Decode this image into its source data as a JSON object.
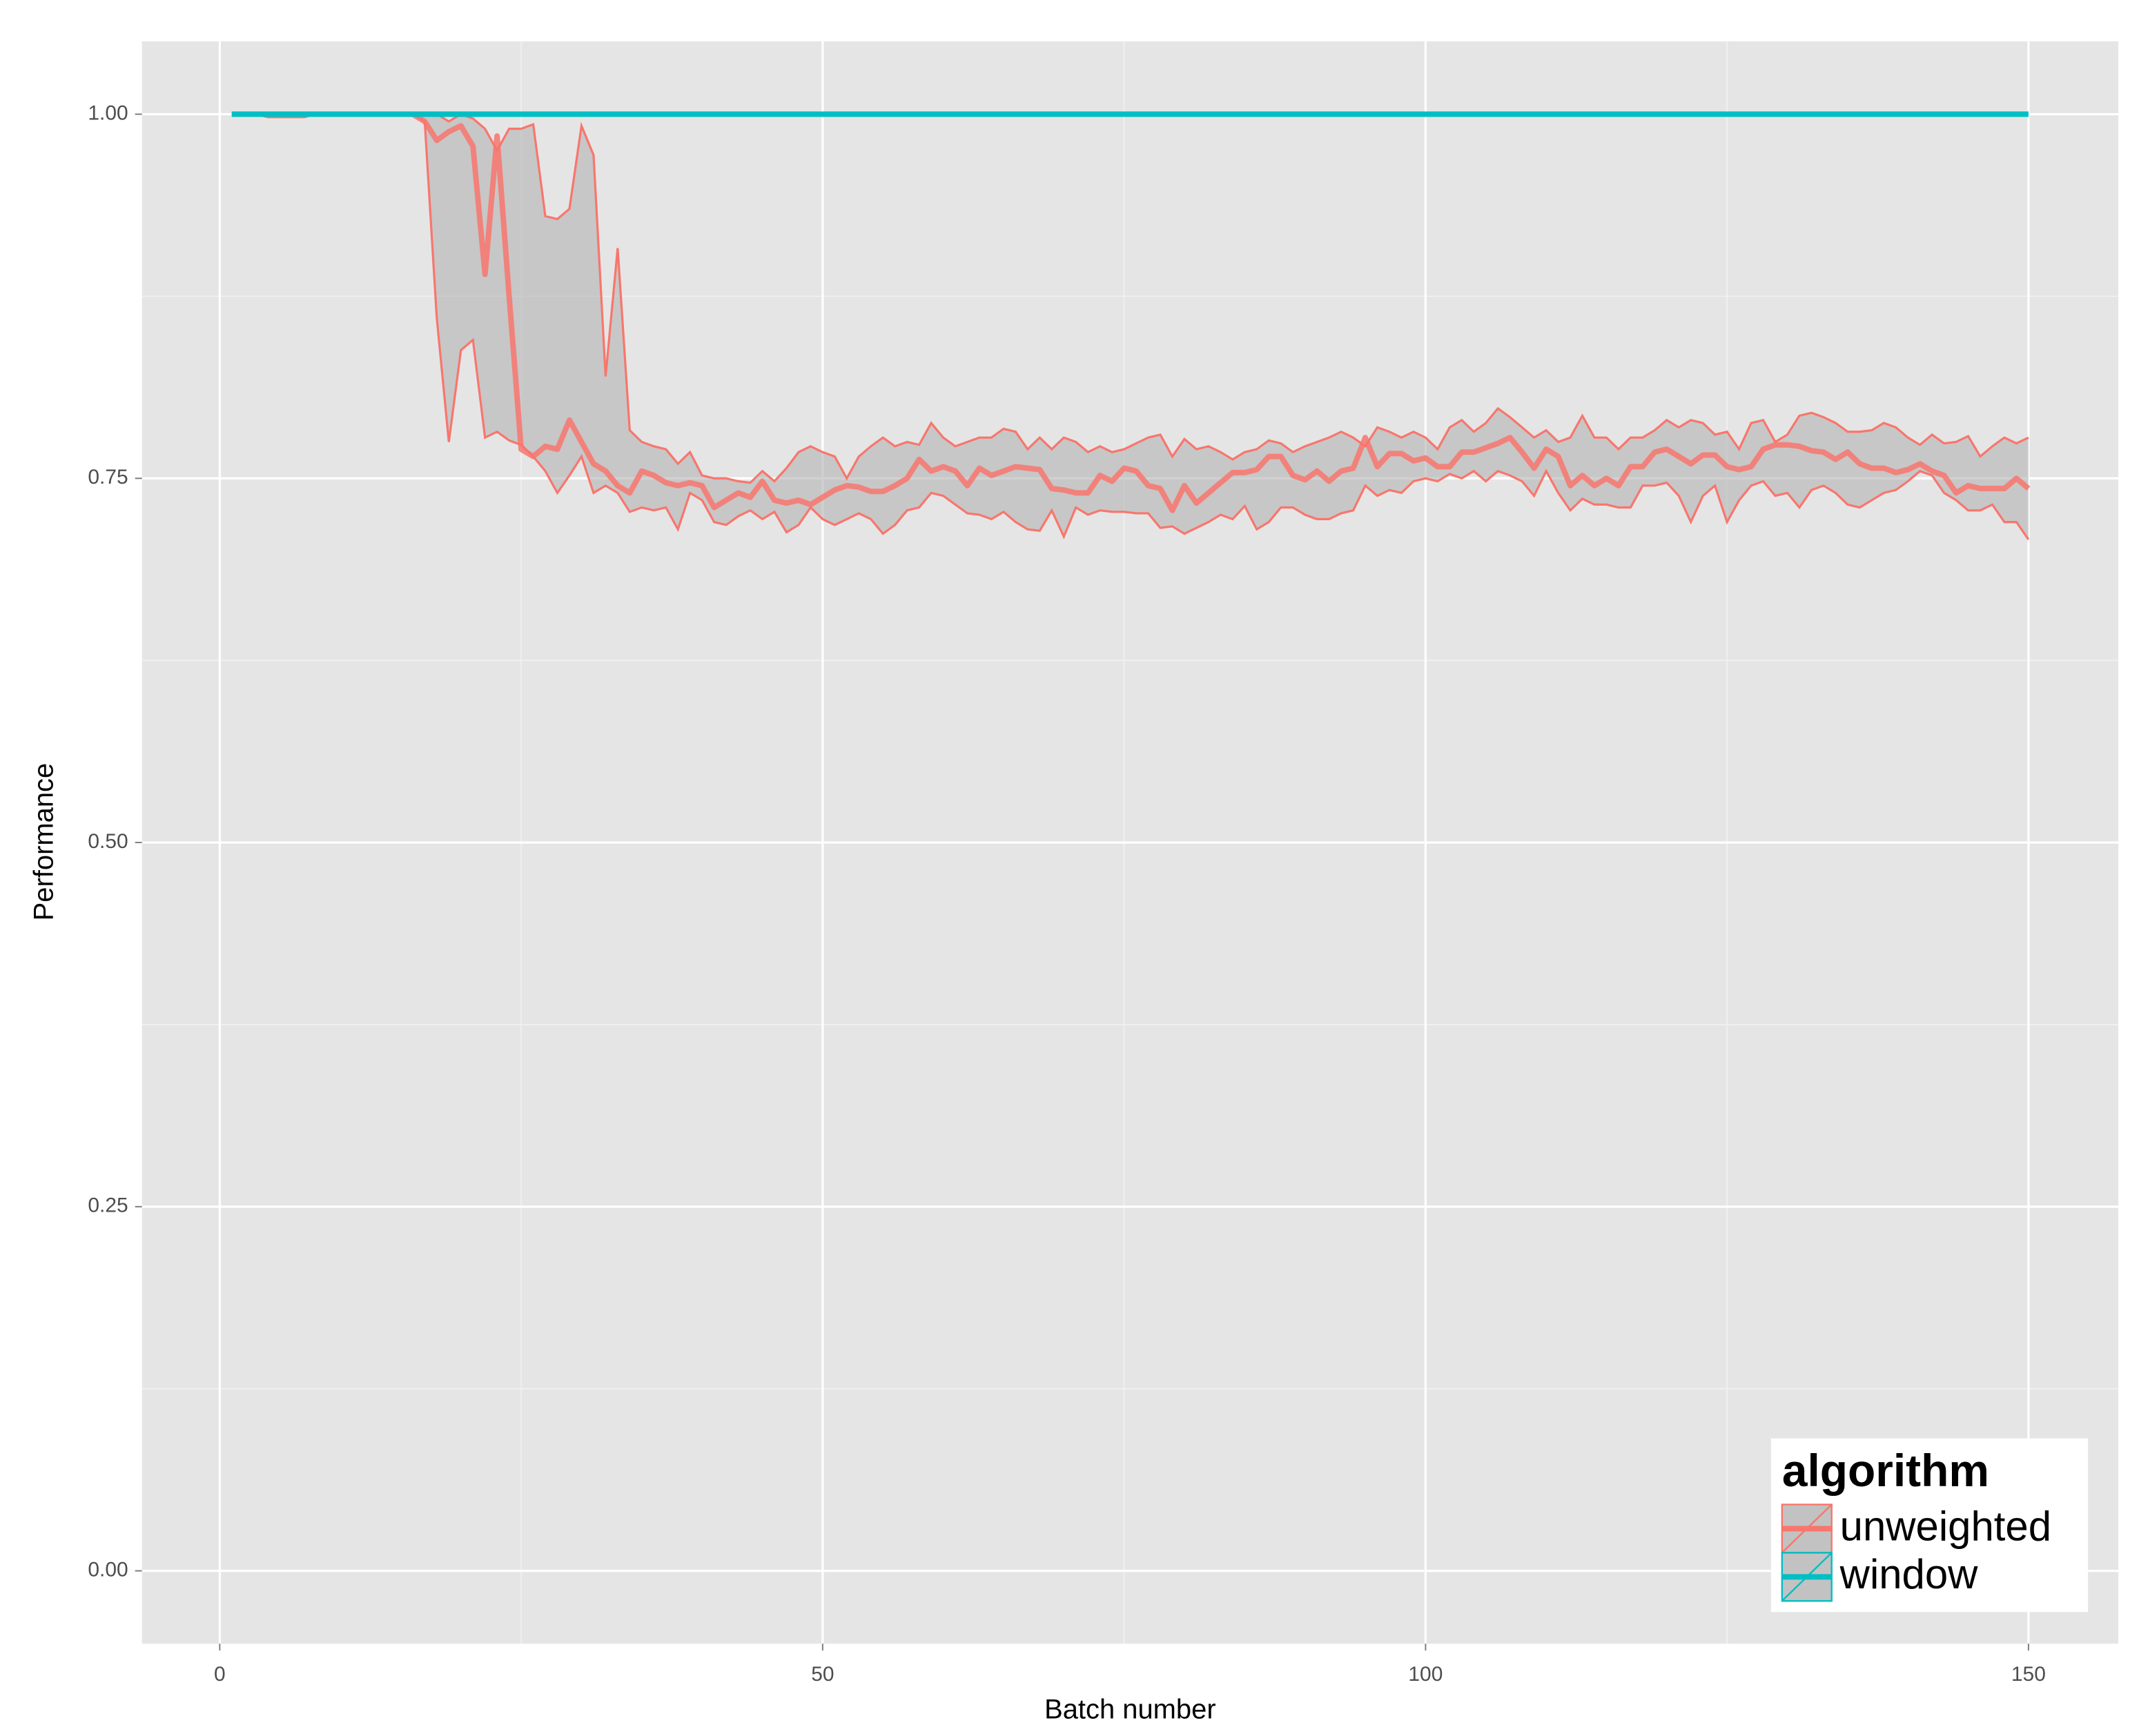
{
  "chart_data": {
    "type": "line_ribbon",
    "xlabel": "Batch number",
    "ylabel": "Performance",
    "xlim": [
      -6.45,
      157.45
    ],
    "ylim": [
      -0.05,
      1.05
    ],
    "xticks": [
      0,
      50,
      100,
      150
    ],
    "xminor": [
      25,
      75,
      125
    ],
    "yticks": [
      {
        "value": 0,
        "label": "0.00"
      },
      {
        "value": 0.25,
        "label": "0.25"
      },
      {
        "value": 0.5,
        "label": "0.50"
      },
      {
        "value": 0.75,
        "label": "0.75"
      },
      {
        "value": 1,
        "label": "1.00"
      }
    ],
    "yminor": [
      0.125,
      0.375,
      0.625,
      0.875
    ],
    "grid": true,
    "legend": "bottom-right",
    "legend_title": "algorithm",
    "x": [
      1,
      2,
      3,
      4,
      5,
      6,
      7,
      8,
      9,
      10,
      11,
      12,
      13,
      14,
      15,
      16,
      17,
      18,
      19,
      20,
      21,
      22,
      23,
      24,
      25,
      26,
      27,
      28,
      29,
      30,
      31,
      32,
      33,
      34,
      35,
      36,
      37,
      38,
      39,
      40,
      41,
      42,
      43,
      44,
      45,
      46,
      47,
      48,
      49,
      50,
      51,
      52,
      53,
      54,
      55,
      56,
      57,
      58,
      59,
      60,
      61,
      62,
      63,
      64,
      65,
      66,
      67,
      68,
      69,
      70,
      71,
      72,
      73,
      74,
      75,
      76,
      77,
      78,
      79,
      80,
      81,
      82,
      83,
      84,
      85,
      86,
      87,
      88,
      89,
      90,
      91,
      92,
      93,
      94,
      95,
      96,
      97,
      98,
      99,
      100,
      101,
      102,
      103,
      104,
      105,
      106,
      107,
      108,
      109,
      110,
      111,
      112,
      113,
      114,
      115,
      116,
      117,
      118,
      119,
      120,
      121,
      122,
      123,
      124,
      125,
      126,
      127,
      128,
      129,
      130,
      131,
      132,
      133,
      134,
      135,
      136,
      137,
      138,
      139,
      140,
      141,
      142,
      143,
      144,
      145,
      146,
      147,
      148,
      149,
      150
    ],
    "series": [
      {
        "name": "unweighted",
        "color": "#f8766d",
        "values": [
          1,
          1,
          1,
          1,
          1,
          1,
          1,
          1,
          1,
          1,
          1,
          1,
          1,
          1,
          1,
          1,
          0.995,
          0.982,
          0.988,
          0.992,
          0.978,
          0.89,
          0.985,
          0.875,
          0.77,
          0.765,
          0.772,
          0.77,
          0.79,
          0.775,
          0.76,
          0.755,
          0.745,
          0.74,
          0.755,
          0.752,
          0.747,
          0.745,
          0.747,
          0.745,
          0.73,
          0.735,
          0.74,
          0.737,
          0.748,
          0.735,
          0.733,
          0.735,
          0.732,
          0.737,
          0.742,
          0.745,
          0.744,
          0.741,
          0.741,
          0.745,
          0.75,
          0.763,
          0.755,
          0.758,
          0.755,
          0.745,
          0.757,
          0.752,
          0.755,
          0.758,
          0.757,
          0.756,
          0.743,
          0.742,
          0.74,
          0.74,
          0.752,
          0.748,
          0.757,
          0.755,
          0.745,
          0.743,
          0.728,
          0.745,
          0.733,
          0.74,
          0.747,
          0.754,
          0.754,
          0.756,
          0.765,
          0.765,
          0.752,
          0.749,
          0.755,
          0.748,
          0.755,
          0.757,
          0.778,
          0.758,
          0.767,
          0.767,
          0.762,
          0.764,
          0.758,
          0.758,
          0.768,
          0.768,
          0.771,
          0.774,
          0.778,
          0.768,
          0.757,
          0.77,
          0.765,
          0.745,
          0.752,
          0.745,
          0.75,
          0.745,
          0.758,
          0.758,
          0.768,
          0.77,
          0.765,
          0.76,
          0.766,
          0.766,
          0.758,
          0.756,
          0.758,
          0.77,
          0.773,
          0.773,
          0.772,
          0.769,
          0.768,
          0.763,
          0.768,
          0.76,
          0.757,
          0.757,
          0.754,
          0.756,
          0.76,
          0.755,
          0.752,
          0.74,
          0.745,
          0.743,
          0.743,
          0.743,
          0.75,
          0.743
        ],
        "lower": [
          1,
          1,
          1,
          0.998,
          0.998,
          0.998,
          0.998,
          1,
          1,
          1,
          1,
          1,
          1,
          1,
          1,
          1,
          0.995,
          0.86,
          0.775,
          0.838,
          0.845,
          0.778,
          0.782,
          0.776,
          0.773,
          0.765,
          0.755,
          0.74,
          0.752,
          0.765,
          0.74,
          0.745,
          0.74,
          0.727,
          0.73,
          0.728,
          0.73,
          0.715,
          0.74,
          0.735,
          0.72,
          0.718,
          0.724,
          0.728,
          0.722,
          0.727,
          0.713,
          0.718,
          0.73,
          0.722,
          0.718,
          0.722,
          0.726,
          0.722,
          0.712,
          0.718,
          0.728,
          0.73,
          0.74,
          0.738,
          0.732,
          0.726,
          0.725,
          0.722,
          0.727,
          0.72,
          0.715,
          0.714,
          0.728,
          0.71,
          0.73,
          0.725,
          0.728,
          0.727,
          0.727,
          0.726,
          0.726,
          0.716,
          0.717,
          0.712,
          0.716,
          0.72,
          0.725,
          0.722,
          0.731,
          0.715,
          0.72,
          0.73,
          0.73,
          0.725,
          0.722,
          0.722,
          0.726,
          0.728,
          0.745,
          0.738,
          0.742,
          0.74,
          0.748,
          0.75,
          0.748,
          0.753,
          0.75,
          0.755,
          0.748,
          0.755,
          0.752,
          0.748,
          0.738,
          0.755,
          0.74,
          0.728,
          0.736,
          0.732,
          0.732,
          0.73,
          0.73,
          0.745,
          0.745,
          0.747,
          0.738,
          0.72,
          0.738,
          0.745,
          0.72,
          0.735,
          0.745,
          0.748,
          0.738,
          0.74,
          0.73,
          0.742,
          0.745,
          0.74,
          0.732,
          0.73,
          0.735,
          0.74,
          0.742,
          0.748,
          0.755,
          0.752,
          0.74,
          0.735,
          0.728,
          0.728,
          0.732,
          0.72,
          0.72,
          0.708
        ],
        "upper": [
          1,
          1,
          1,
          1,
          1,
          1,
          1,
          1,
          1,
          1,
          1,
          1,
          1,
          1,
          1,
          1,
          1,
          1,
          0.995,
          1,
          0.997,
          0.99,
          0.975,
          0.99,
          0.99,
          0.993,
          0.93,
          0.928,
          0.935,
          0.992,
          0.972,
          0.82,
          0.908,
          0.783,
          0.775,
          0.772,
          0.77,
          0.76,
          0.768,
          0.752,
          0.75,
          0.75,
          0.748,
          0.747,
          0.755,
          0.748,
          0.757,
          0.768,
          0.772,
          0.768,
          0.765,
          0.75,
          0.765,
          0.772,
          0.778,
          0.772,
          0.775,
          0.773,
          0.788,
          0.778,
          0.772,
          0.775,
          0.778,
          0.778,
          0.784,
          0.782,
          0.77,
          0.778,
          0.77,
          0.778,
          0.775,
          0.768,
          0.772,
          0.768,
          0.77,
          0.774,
          0.778,
          0.78,
          0.765,
          0.777,
          0.77,
          0.772,
          0.768,
          0.763,
          0.768,
          0.77,
          0.776,
          0.774,
          0.768,
          0.772,
          0.775,
          0.778,
          0.782,
          0.778,
          0.772,
          0.785,
          0.782,
          0.778,
          0.782,
          0.778,
          0.77,
          0.785,
          0.79,
          0.782,
          0.788,
          0.798,
          0.792,
          0.785,
          0.778,
          0.783,
          0.775,
          0.778,
          0.793,
          0.778,
          0.778,
          0.77,
          0.778,
          0.778,
          0.783,
          0.79,
          0.785,
          0.79,
          0.788,
          0.78,
          0.782,
          0.77,
          0.788,
          0.79,
          0.775,
          0.78,
          0.793,
          0.795,
          0.792,
          0.788,
          0.782,
          0.782,
          0.783,
          0.788,
          0.785,
          0.778,
          0.773,
          0.78,
          0.774,
          0.775,
          0.779,
          0.765,
          0.772,
          0.778,
          0.774,
          0.778
        ]
      },
      {
        "name": "window",
        "color": "#00bfc4",
        "values": [
          1,
          1,
          1,
          1,
          1,
          1,
          1,
          1,
          1,
          1,
          1,
          1,
          1,
          1,
          1,
          1,
          1,
          1,
          1,
          1,
          1,
          1,
          1,
          1,
          1,
          1,
          1,
          1,
          1,
          1,
          1,
          1,
          1,
          1,
          1,
          1,
          1,
          1,
          1,
          1,
          1,
          1,
          1,
          1,
          1,
          1,
          1,
          1,
          1,
          1,
          1,
          1,
          1,
          1,
          1,
          1,
          1,
          1,
          1,
          1,
          1,
          1,
          1,
          1,
          1,
          1,
          1,
          1,
          1,
          1,
          1,
          1,
          1,
          1,
          1,
          1,
          1,
          1,
          1,
          1,
          1,
          1,
          1,
          1,
          1,
          1,
          1,
          1,
          1,
          1,
          1,
          1,
          1,
          1,
          1,
          1,
          1,
          1,
          1,
          1,
          1,
          1,
          1,
          1,
          1,
          1,
          1,
          1,
          1,
          1,
          1,
          1,
          1,
          1,
          1,
          1,
          1,
          1,
          1,
          1,
          1,
          1,
          1,
          1,
          1,
          1,
          1,
          1,
          1,
          1,
          1,
          1,
          1,
          1,
          1,
          1,
          1,
          1,
          1,
          1,
          1,
          1,
          1,
          1,
          1,
          1,
          1,
          1,
          1,
          1
        ]
      }
    ]
  }
}
